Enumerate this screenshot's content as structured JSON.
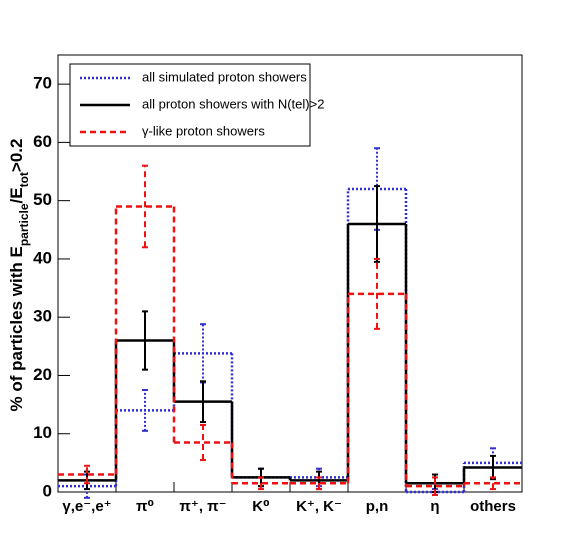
{
  "chart_data": {
    "type": "step",
    "y_label_parts": [
      "% of particles with E",
      "particle",
      "/E",
      "tot",
      ">0.2"
    ],
    "categories": [
      "γ,e⁻,e⁺",
      "π⁰",
      "π⁺, π⁻",
      "K⁰",
      "K⁺, K⁻",
      "p,n",
      "η",
      "others"
    ],
    "series": [
      {
        "name": "all simulated proton showers",
        "color": "#3030d0",
        "line_style": "dotted",
        "values": [
          1,
          14,
          23.8,
          2.5,
          2.5,
          52,
          0,
          5
        ],
        "errors": [
          2,
          3.5,
          5,
          1.5,
          1.5,
          7,
          0.5,
          2.5
        ]
      },
      {
        "name": "all proton showers with N(tel)>2",
        "color": "#000000",
        "line_style": "solid",
        "values": [
          2,
          26,
          15.5,
          2.5,
          2,
          46,
          1.5,
          4.2
        ],
        "errors": [
          1.5,
          5,
          3.5,
          1.5,
          1.5,
          6.5,
          1.5,
          2
        ]
      },
      {
        "name": "γ-like proton showers",
        "color": "#ee1111",
        "line_style": "dashed",
        "values": [
          3,
          49,
          8.5,
          1.5,
          1.5,
          34,
          1,
          1.5
        ],
        "errors": [
          1.5,
          7,
          3,
          1,
          1,
          6,
          1.5,
          1
        ]
      }
    ],
    "ylim": [
      0,
      75
    ],
    "yticks": [
      0,
      10,
      20,
      30,
      40,
      50,
      60,
      70
    ],
    "legend": "top-left"
  }
}
